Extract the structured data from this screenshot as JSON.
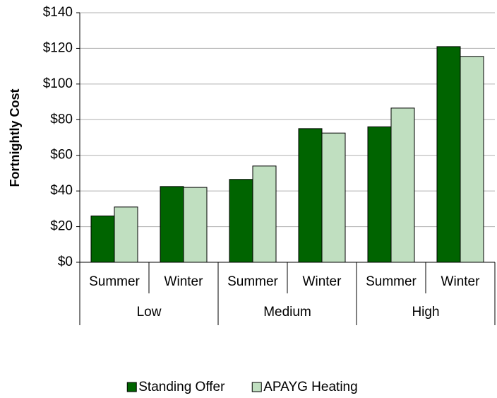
{
  "chart_data": {
    "type": "bar",
    "y_label": "Fortnightly Cost",
    "categories": [
      "Summer",
      "Winter",
      "Summer",
      "Winter",
      "Summer",
      "Winter"
    ],
    "groups": [
      "Low",
      "Medium",
      "High"
    ],
    "series": [
      {
        "name": "Standing Offer",
        "color": "#006400",
        "values": [
          26,
          42.5,
          46.5,
          75,
          76,
          121
        ]
      },
      {
        "name": "APAYG Heating",
        "color": "#c0dfc0",
        "values": [
          31,
          42,
          54,
          72.5,
          86.5,
          115.5
        ]
      }
    ],
    "ylim": [
      0,
      140
    ],
    "yticks": [
      {
        "value": 0,
        "label": "$0"
      },
      {
        "value": 20,
        "label": "$20"
      },
      {
        "value": 40,
        "label": "$40"
      },
      {
        "value": 60,
        "label": "$60"
      },
      {
        "value": 80,
        "label": "$80"
      },
      {
        "value": 100,
        "label": "$100"
      },
      {
        "value": 120,
        "label": "$120"
      },
      {
        "value": 140,
        "label": "$140"
      }
    ],
    "grid": true,
    "legend": "bottom"
  }
}
